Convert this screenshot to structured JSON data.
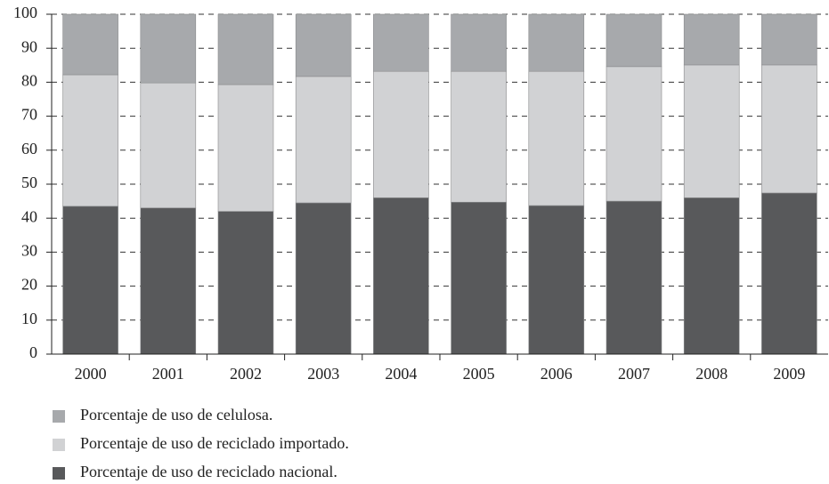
{
  "chart_data": {
    "type": "stacked_bar",
    "categories": [
      "2000",
      "2001",
      "2002",
      "2003",
      "2004",
      "2005",
      "2006",
      "2007",
      "2008",
      "2009"
    ],
    "series": [
      {
        "name": "Porcentaje de uso de reciclado nacional.",
        "color": "#58595b",
        "values": [
          43.5,
          43,
          42,
          44.5,
          46,
          44.7,
          43.7,
          45,
          46,
          47.4
        ]
      },
      {
        "name": "Porcentaje de uso de reciclado importado.",
        "color": "#d1d2d4",
        "values": [
          38.7,
          36.8,
          37.3,
          37.2,
          37.2,
          38.5,
          39.5,
          39.6,
          39.1,
          37.7
        ]
      },
      {
        "name": "Porcentaje de uso de celulosa.",
        "color": "#a7a9ac",
        "values": [
          17.8,
          20.2,
          20.7,
          18.3,
          16.8,
          16.8,
          16.8,
          15.4,
          14.9,
          14.9
        ]
      }
    ],
    "ylim": [
      0,
      100
    ],
    "yticks": [
      0,
      10,
      20,
      30,
      40,
      50,
      60,
      70,
      80,
      90,
      100
    ],
    "grid": true
  }
}
